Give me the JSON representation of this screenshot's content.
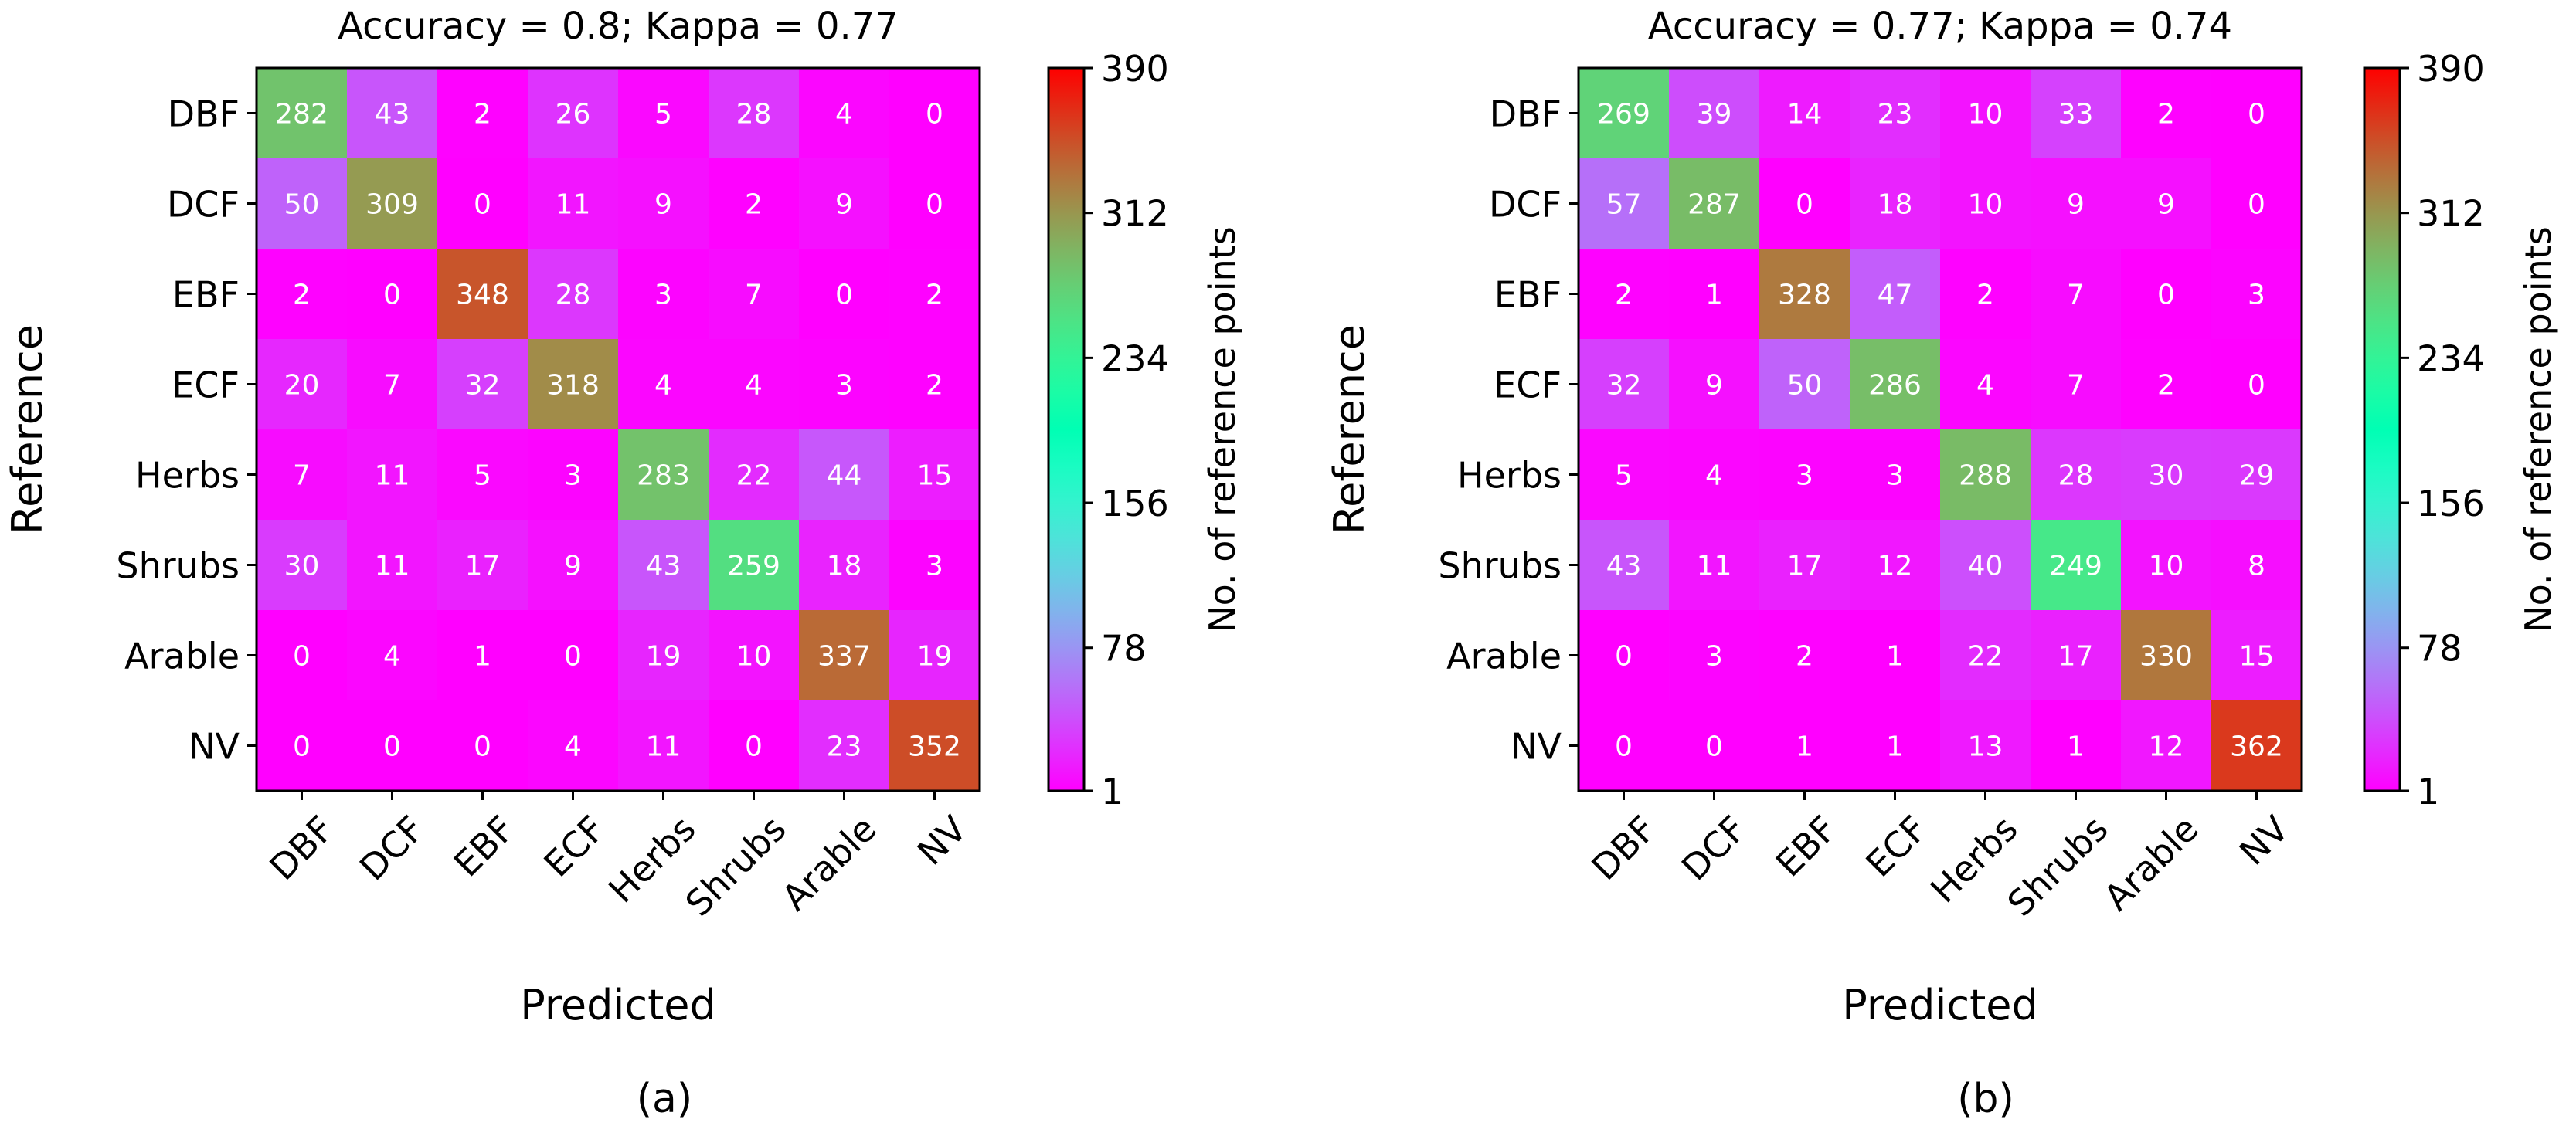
{
  "chart_data": [
    {
      "type": "heatmap",
      "title": "Accuracy = 0.8; Kappa = 0.77",
      "xlabel": "Predicted",
      "ylabel": "Reference",
      "caption": "(a)",
      "x_categories": [
        "DBF",
        "DCF",
        "EBF",
        "ECF",
        "Herbs",
        "Shrubs",
        "Arable",
        "NV"
      ],
      "y_categories": [
        "DBF",
        "DCF",
        "EBF",
        "ECF",
        "Herbs",
        "Shrubs",
        "Arable",
        "NV"
      ],
      "matrix": [
        [
          282,
          43,
          2,
          26,
          5,
          28,
          4,
          0
        ],
        [
          50,
          309,
          0,
          11,
          9,
          2,
          9,
          0
        ],
        [
          2,
          0,
          348,
          28,
          3,
          7,
          0,
          2
        ],
        [
          20,
          7,
          32,
          318,
          4,
          4,
          3,
          2
        ],
        [
          7,
          11,
          5,
          3,
          283,
          22,
          44,
          15
        ],
        [
          30,
          11,
          17,
          9,
          43,
          259,
          18,
          3
        ],
        [
          0,
          4,
          1,
          0,
          19,
          10,
          337,
          19
        ],
        [
          0,
          0,
          0,
          4,
          11,
          0,
          23,
          352
        ]
      ],
      "colorbar": {
        "label": "No. of reference points",
        "min": 1,
        "max": 390,
        "ticks": [
          1,
          78,
          156,
          234,
          312,
          390
        ],
        "colormap": "rainbow"
      }
    },
    {
      "type": "heatmap",
      "title": "Accuracy = 0.77; Kappa = 0.74",
      "xlabel": "Predicted",
      "ylabel": "Reference",
      "caption": "(b)",
      "x_categories": [
        "DBF",
        "DCF",
        "EBF",
        "ECF",
        "Herbs",
        "Shrubs",
        "Arable",
        "NV"
      ],
      "y_categories": [
        "DBF",
        "DCF",
        "EBF",
        "ECF",
        "Herbs",
        "Shrubs",
        "Arable",
        "NV"
      ],
      "matrix": [
        [
          269,
          39,
          14,
          23,
          10,
          33,
          2,
          0
        ],
        [
          57,
          287,
          0,
          18,
          10,
          9,
          9,
          0
        ],
        [
          2,
          1,
          328,
          47,
          2,
          7,
          0,
          3
        ],
        [
          32,
          9,
          50,
          286,
          4,
          7,
          2,
          0
        ],
        [
          5,
          4,
          3,
          3,
          288,
          28,
          30,
          29
        ],
        [
          43,
          11,
          17,
          12,
          40,
          249,
          10,
          8
        ],
        [
          0,
          3,
          2,
          1,
          22,
          17,
          330,
          15
        ],
        [
          0,
          0,
          1,
          1,
          13,
          1,
          12,
          362
        ]
      ],
      "colorbar": {
        "label": "No. of reference points",
        "min": 1,
        "max": 390,
        "ticks": [
          1,
          78,
          156,
          234,
          312,
          390
        ],
        "colormap": "rainbow"
      }
    }
  ]
}
